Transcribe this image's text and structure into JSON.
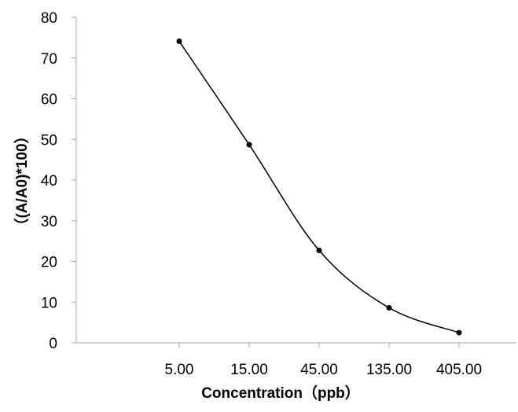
{
  "chart_data": {
    "type": "line",
    "title": "",
    "xlabel": "Concentration（ppb）",
    "ylabel": "（(A/A0)*100）",
    "categories": [
      "5.00",
      "15.00",
      "45.00",
      "135.00",
      "405.00"
    ],
    "series": [
      {
        "values": [
          74.1,
          48.7,
          22.7,
          8.6,
          2.5
        ]
      }
    ],
    "ylim": [
      0,
      80
    ],
    "yticks": [
      "0",
      "10",
      "20",
      "30",
      "40",
      "50",
      "60",
      "70",
      "80"
    ],
    "grid": false,
    "legend": "none",
    "smooth": true,
    "line_color": "#000000",
    "axis_color": "#a6a6a6"
  }
}
